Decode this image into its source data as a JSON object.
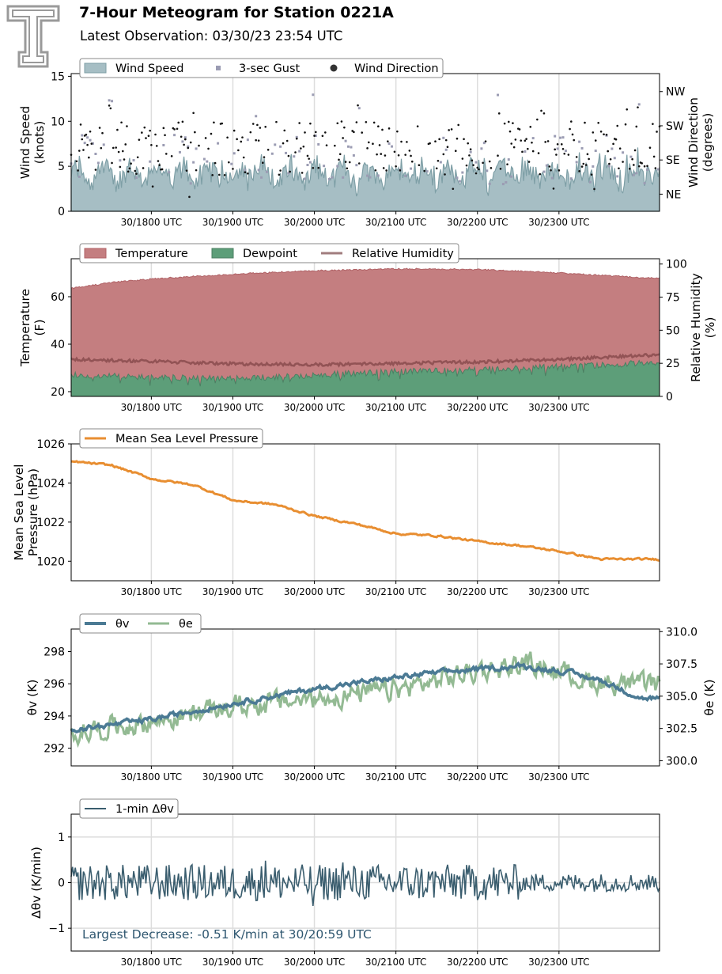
{
  "header": {
    "title": "7-Hour Meteogram for Station 0221A",
    "subtitle": "Latest Observation: 03/30/23 23:54 UTC"
  },
  "colors": {
    "wind_fill": "#a6bec4",
    "wind_line": "#7e9fa6",
    "gust": "#9b9cb3",
    "direction": "#111111",
    "temperature": "#c47e80",
    "temperature_line": "#b06266",
    "dewpoint": "#5d9e79",
    "dewpoint_line": "#4b7f62",
    "relative_humidity": "#8a4b4e",
    "pressure": "#e88e31",
    "theta_v": "#4b7a94",
    "theta_e": "#93ba93",
    "delta_theta": "#3a5d6e",
    "annotation": "#2f5770",
    "grid": "#dddddd"
  },
  "chart_data": [
    {
      "type": "area",
      "name": "wind",
      "x_ticks": [
        "30/1800 UTC",
        "30/1900 UTC",
        "30/2000 UTC",
        "30/2100 UTC",
        "30/2200 UTC",
        "30/2300 UTC"
      ],
      "ylabel": "Wind Speed\n(knots)",
      "ylim": [
        0,
        15.3
      ],
      "y_ticks": [
        "0",
        "5",
        "10",
        "15"
      ],
      "y2label": "Wind Direction\n(degrees)",
      "y2_ticks": [
        "NE",
        "SE",
        "SW",
        "NW"
      ],
      "legend": [
        "Wind Speed",
        "3-sec Gust",
        "Wind Direction"
      ],
      "legend_placement": "top-left",
      "series_summary": {
        "wind_speed_typical": [
          1,
          6
        ],
        "wind_speed_max": 7.5,
        "gust_typical": [
          3,
          9
        ],
        "gust_max": 13.2,
        "direction_typical": [
          4,
          10
        ],
        "direction_max": 14.5
      },
      "grid": true
    },
    {
      "type": "area",
      "name": "thermo",
      "x_ticks": [
        "30/1800 UTC",
        "30/1900 UTC",
        "30/2000 UTC",
        "30/2100 UTC",
        "30/2200 UTC",
        "30/2300 UTC"
      ],
      "ylabel": "Temperature\n(F)",
      "ylim": [
        18,
        76
      ],
      "y_ticks": [
        "20",
        "40",
        "60"
      ],
      "y2label": "Relative Humidity\n(%)",
      "y2lim": [
        0,
        104
      ],
      "y2_ticks": [
        "0",
        "25",
        "50",
        "75",
        "100"
      ],
      "legend": [
        "Temperature",
        "Dewpoint",
        "Relative Humidity"
      ],
      "legend_placement": "top-left",
      "temperature_keypoints": [
        [
          0,
          63.5
        ],
        [
          30,
          66
        ],
        [
          60,
          67.5
        ],
        [
          120,
          69.5
        ],
        [
          180,
          71
        ],
        [
          240,
          71.7
        ],
        [
          300,
          71.5
        ],
        [
          360,
          70
        ],
        [
          420,
          68
        ]
      ],
      "dewpoint_keypoints": [
        [
          0,
          27
        ],
        [
          60,
          26
        ],
        [
          120,
          25.5
        ],
        [
          180,
          27
        ],
        [
          240,
          28.5
        ],
        [
          300,
          29.5
        ],
        [
          360,
          30.5
        ],
        [
          420,
          32
        ]
      ],
      "rh_keypoints": [
        [
          0,
          28
        ],
        [
          60,
          26.5
        ],
        [
          120,
          24.5
        ],
        [
          180,
          24
        ],
        [
          240,
          25
        ],
        [
          300,
          26
        ],
        [
          360,
          28
        ],
        [
          420,
          31
        ]
      ],
      "grid": true
    },
    {
      "type": "line",
      "name": "pressure",
      "x_ticks": [
        "30/1800 UTC",
        "30/1900 UTC",
        "30/2000 UTC",
        "30/2100 UTC",
        "30/2200 UTC",
        "30/2300 UTC"
      ],
      "ylabel": "Mean Sea Level\nPressure (hPa)",
      "ylim": [
        1019,
        1026
      ],
      "y_ticks": [
        "1020",
        "1022",
        "1024",
        "1026"
      ],
      "legend": [
        "Mean Sea Level Pressure"
      ],
      "legend_placement": "top-left",
      "keypoints": [
        [
          0,
          1025.1
        ],
        [
          30,
          1024.9
        ],
        [
          60,
          1024.2
        ],
        [
          90,
          1023.9
        ],
        [
          120,
          1023.1
        ],
        [
          150,
          1022.9
        ],
        [
          180,
          1022.3
        ],
        [
          210,
          1021.9
        ],
        [
          240,
          1021.4
        ],
        [
          270,
          1021.3
        ],
        [
          300,
          1021.0
        ],
        [
          330,
          1020.8
        ],
        [
          360,
          1020.5
        ],
        [
          390,
          1020.1
        ],
        [
          420,
          1020.1
        ]
      ],
      "grid": true
    },
    {
      "type": "line",
      "name": "theta",
      "x_ticks": [
        "30/1800 UTC",
        "30/1900 UTC",
        "30/2000 UTC",
        "30/2100 UTC",
        "30/2200 UTC",
        "30/2300 UTC"
      ],
      "ylabel": "θv (K)",
      "ylim": [
        290.9,
        299.4
      ],
      "y_ticks": [
        "292",
        "294",
        "296",
        "298"
      ],
      "y2label": "θe (K)",
      "y2lim": [
        299.6,
        310.2
      ],
      "y2_ticks": [
        "300.0",
        "302.5",
        "305.0",
        "307.5",
        "310.0"
      ],
      "legend": [
        "θv",
        "θe"
      ],
      "legend_placement": "top-left",
      "theta_v_keypoints": [
        [
          0,
          293.1
        ],
        [
          60,
          293.8
        ],
        [
          120,
          294.8
        ],
        [
          180,
          295.7
        ],
        [
          240,
          296.4
        ],
        [
          270,
          296.7
        ],
        [
          300,
          296.9
        ],
        [
          330,
          297.1
        ],
        [
          360,
          296.8
        ],
        [
          390,
          296.2
        ],
        [
          420,
          295.1
        ]
      ],
      "theta_e_keypoints": [
        [
          0,
          302.2
        ],
        [
          60,
          303.0
        ],
        [
          120,
          304.2
        ],
        [
          180,
          304.8
        ],
        [
          240,
          305.5
        ],
        [
          300,
          307.0
        ],
        [
          340,
          307.5
        ],
        [
          380,
          306.2
        ],
        [
          420,
          305.8
        ]
      ],
      "grid": true
    },
    {
      "type": "line",
      "name": "delta_theta",
      "x_ticks": [
        "30/1800 UTC",
        "30/1900 UTC",
        "30/2000 UTC",
        "30/2100 UTC",
        "30/2200 UTC",
        "30/2300 UTC"
      ],
      "ylabel": "Δθv (K/min)",
      "ylim": [
        -1.5,
        1.5
      ],
      "y_ticks": [
        "−1",
        "0",
        "1"
      ],
      "legend": [
        "1-min Δθv"
      ],
      "legend_placement": "top-left",
      "annotation": "Largest Decrease: -0.51 K/min at 30/20:59 UTC",
      "min_value": -0.51,
      "typical_amplitude": 0.25,
      "grid": true
    }
  ]
}
